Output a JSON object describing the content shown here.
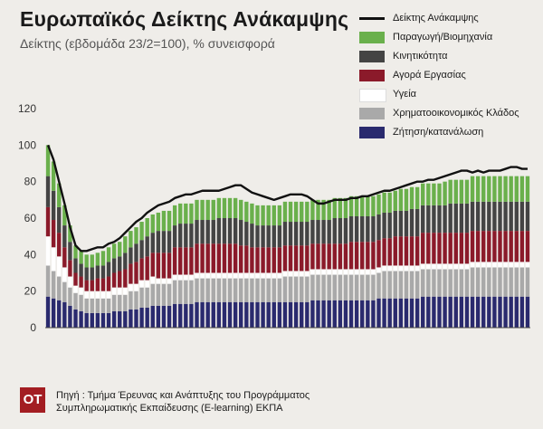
{
  "header": {
    "title": "Ευρωπαϊκός Δείκτης Ανάκαμψης",
    "subtitle": "Δείκτης (εβδομάδα 23/2=100), % συνεισφορά"
  },
  "footer": {
    "logo": "OT",
    "source_line1": "Πηγή : Τμήμα Έρευνας και Ανάπτυξης του Προγράμματος",
    "source_line2": "Συμπληρωματικής Εκπαίδευσης (E-learning) ΕΚΠΑ"
  },
  "chart_data": {
    "type": "bar",
    "stacked": true,
    "ylim": [
      0,
      120
    ],
    "yticks": [
      0,
      20,
      40,
      60,
      80,
      100,
      120
    ],
    "grid": false,
    "legend_position": "top-right",
    "x_count": 88,
    "series": [
      {
        "name": "Ζήτηση/κατανάλωση",
        "color": "#2a2a6e",
        "values": [
          17,
          16,
          15,
          14,
          12,
          10,
          9,
          8,
          8,
          8,
          8,
          8,
          9,
          9,
          9,
          10,
          10,
          11,
          11,
          12,
          12,
          12,
          12,
          13,
          13,
          13,
          13,
          14,
          14,
          14,
          14,
          14,
          14,
          14,
          14,
          14,
          14,
          14,
          14,
          14,
          14,
          14,
          14,
          14,
          14,
          14,
          14,
          14,
          15,
          15,
          15,
          15,
          15,
          15,
          15,
          15,
          15,
          15,
          15,
          15,
          16,
          16,
          16,
          16,
          16,
          16,
          16,
          16,
          17,
          17,
          17,
          17,
          17,
          17,
          17,
          17,
          17,
          17,
          17,
          17,
          17,
          17,
          17,
          17,
          17,
          17,
          17,
          17
        ]
      },
      {
        "name": "Χρηματοοικονομικός Κλάδος",
        "color": "#a9a9a9",
        "values": [
          17,
          15,
          13,
          11,
          10,
          9,
          9,
          8,
          8,
          8,
          8,
          8,
          9,
          9,
          9,
          10,
          10,
          11,
          11,
          12,
          12,
          12,
          12,
          13,
          13,
          13,
          13,
          13,
          13,
          13,
          13,
          13,
          13,
          13,
          13,
          13,
          13,
          13,
          13,
          13,
          13,
          13,
          13,
          14,
          14,
          14,
          14,
          14,
          14,
          14,
          14,
          14,
          14,
          14,
          14,
          14,
          14,
          14,
          14,
          14,
          14,
          15,
          15,
          15,
          15,
          15,
          15,
          15,
          15,
          15,
          15,
          15,
          15,
          15,
          15,
          15,
          15,
          16,
          16,
          16,
          16,
          16,
          16,
          16,
          16,
          16,
          16,
          16
        ]
      },
      {
        "name": "Υγεία",
        "color": "#ffffff",
        "values": [
          16,
          13,
          11,
          8,
          6,
          4,
          4,
          4,
          4,
          4,
          4,
          4,
          4,
          4,
          4,
          4,
          4,
          4,
          4,
          4,
          3,
          3,
          3,
          3,
          3,
          3,
          3,
          3,
          3,
          3,
          3,
          3,
          3,
          3,
          3,
          3,
          3,
          3,
          3,
          3,
          3,
          3,
          3,
          3,
          3,
          3,
          3,
          3,
          3,
          3,
          3,
          3,
          3,
          3,
          3,
          3,
          3,
          3,
          3,
          3,
          3,
          3,
          3,
          3,
          3,
          3,
          3,
          3,
          3,
          3,
          3,
          3,
          3,
          3,
          3,
          3,
          3,
          3,
          3,
          3,
          3,
          3,
          3,
          3,
          3,
          3,
          3,
          3
        ]
      },
      {
        "name": "Αγορά Εργασίας",
        "color": "#8b1a2a",
        "values": [
          16,
          15,
          13,
          11,
          9,
          7,
          6,
          6,
          6,
          7,
          7,
          8,
          8,
          9,
          10,
          11,
          12,
          12,
          13,
          13,
          14,
          14,
          14,
          15,
          15,
          15,
          15,
          16,
          16,
          16,
          16,
          16,
          16,
          16,
          16,
          15,
          15,
          14,
          14,
          14,
          14,
          14,
          14,
          14,
          14,
          14,
          14,
          14,
          14,
          14,
          14,
          14,
          14,
          14,
          14,
          15,
          15,
          15,
          15,
          15,
          15,
          15,
          15,
          16,
          16,
          16,
          16,
          16,
          17,
          17,
          17,
          17,
          17,
          17,
          17,
          17,
          17,
          17,
          17,
          17,
          17,
          17,
          17,
          17,
          17,
          17,
          17,
          17
        ]
      },
      {
        "name": "Κινητικότητα",
        "color": "#444444",
        "values": [
          17,
          16,
          14,
          12,
          10,
          8,
          7,
          7,
          7,
          7,
          7,
          8,
          8,
          8,
          9,
          9,
          10,
          10,
          11,
          11,
          12,
          12,
          12,
          12,
          13,
          13,
          13,
          13,
          13,
          13,
          13,
          14,
          14,
          14,
          14,
          14,
          13,
          13,
          12,
          12,
          12,
          12,
          12,
          13,
          13,
          13,
          13,
          13,
          13,
          13,
          13,
          13,
          14,
          14,
          14,
          14,
          14,
          14,
          14,
          14,
          14,
          14,
          14,
          14,
          14,
          14,
          15,
          15,
          15,
          15,
          15,
          15,
          15,
          16,
          16,
          16,
          16,
          16,
          16,
          16,
          16,
          16,
          16,
          16,
          16,
          16,
          16,
          16
        ]
      },
      {
        "name": "Παραγωγή/Βιομηχανία",
        "color": "#6ab04c",
        "values": [
          17,
          16,
          13,
          11,
          9,
          7,
          7,
          7,
          7,
          7,
          8,
          8,
          8,
          8,
          9,
          9,
          9,
          10,
          10,
          10,
          10,
          11,
          11,
          11,
          11,
          11,
          11,
          11,
          11,
          11,
          11,
          11,
          11,
          11,
          11,
          11,
          11,
          11,
          11,
          11,
          11,
          11,
          11,
          11,
          11,
          11,
          11,
          11,
          11,
          11,
          11,
          11,
          11,
          11,
          11,
          11,
          11,
          11,
          11,
          11,
          11,
          11,
          11,
          11,
          12,
          12,
          12,
          12,
          12,
          12,
          12,
          12,
          13,
          13,
          13,
          13,
          13,
          14,
          14,
          14,
          14,
          14,
          14,
          14,
          14,
          14,
          14,
          14
        ]
      }
    ],
    "line": {
      "name": "Δείκτης Ανάκαμψης",
      "color": "#111111",
      "values": [
        100,
        92,
        80,
        68,
        55,
        45,
        42,
        42,
        43,
        44,
        44,
        46,
        47,
        49,
        52,
        55,
        58,
        60,
        63,
        65,
        67,
        68,
        69,
        71,
        72,
        73,
        73,
        74,
        75,
        75,
        75,
        75,
        76,
        77,
        78,
        78,
        76,
        74,
        73,
        72,
        71,
        70,
        71,
        72,
        73,
        73,
        73,
        72,
        70,
        68,
        68,
        69,
        70,
        70,
        70,
        71,
        71,
        72,
        72,
        73,
        74,
        75,
        75,
        76,
        77,
        78,
        79,
        80,
        80,
        81,
        81,
        82,
        83,
        84,
        85,
        86,
        86,
        85,
        86,
        85,
        86,
        86,
        86,
        87,
        88,
        88,
        87,
        87
      ]
    }
  }
}
